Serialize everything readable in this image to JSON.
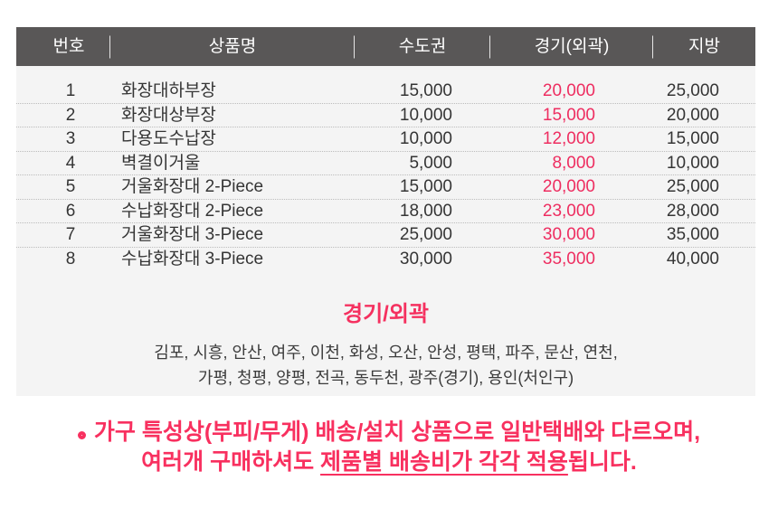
{
  "table": {
    "headers": [
      "번호",
      "상품명",
      "수도권",
      "경기(외곽)",
      "지방"
    ],
    "rows": [
      {
        "no": "1",
        "name": "화장대하부장",
        "sudogwon": "15,000",
        "gyeonggi_outer": "20,000",
        "jibang": "25,000"
      },
      {
        "no": "2",
        "name": "화장대상부장",
        "sudogwon": "10,000",
        "gyeonggi_outer": "15,000",
        "jibang": "20,000"
      },
      {
        "no": "3",
        "name": "다용도수납장",
        "sudogwon": "10,000",
        "gyeonggi_outer": "12,000",
        "jibang": "15,000"
      },
      {
        "no": "4",
        "name": "벽결이거울",
        "sudogwon": "5,000",
        "gyeonggi_outer": "8,000",
        "jibang": "10,000"
      },
      {
        "no": "5",
        "name": "거울화장대 2-Piece",
        "sudogwon": "15,000",
        "gyeonggi_outer": "20,000",
        "jibang": "25,000"
      },
      {
        "no": "6",
        "name": "수납화장대 2-Piece",
        "sudogwon": "18,000",
        "gyeonggi_outer": "23,000",
        "jibang": "28,000"
      },
      {
        "no": "7",
        "name": "거울화장대 3-Piece",
        "sudogwon": "25,000",
        "gyeonggi_outer": "30,000",
        "jibang": "35,000"
      },
      {
        "no": "8",
        "name": "수납화장대 3-Piece",
        "sudogwon": "30,000",
        "gyeonggi_outer": "35,000",
        "jibang": "40,000"
      }
    ]
  },
  "region_section": {
    "title": "경기/외곽",
    "line1": "김포, 시흥, 안산, 여주, 이천, 화성, 오산, 안성, 평택, 파주, 문산, 연천,",
    "line2": "가평, 청평, 양평, 전곡, 동두천, 광주(경기), 용인(처인구)"
  },
  "notice": {
    "line1": "가구 특성상(부피/무게) 배송/설치 상품으로 일반택배와 다르오며,",
    "line2_prefix": "여러개 구매하셔도 ",
    "line2_underlined": "제품별 배송비가 각각 적용",
    "line2_suffix": "됩니다."
  },
  "colors": {
    "accent_pink": "#f5305f",
    "price_pink": "#ee2d60",
    "header_bg": "#595757",
    "panel_bg": "#f4f4f4",
    "body_text": "#353535"
  }
}
